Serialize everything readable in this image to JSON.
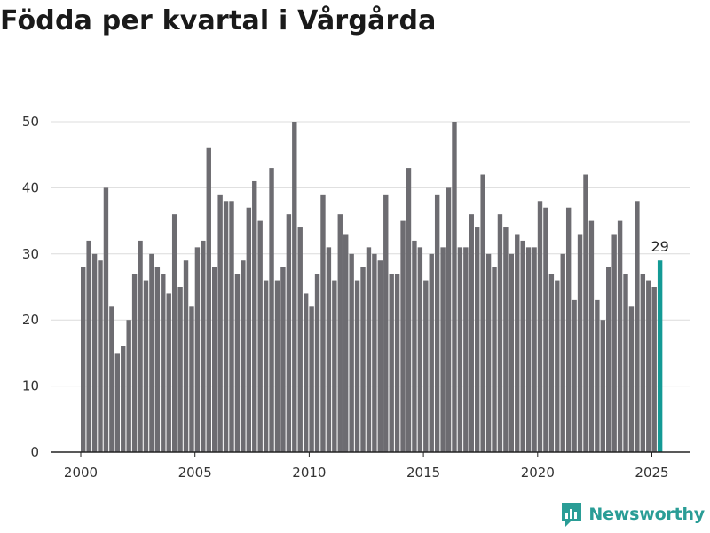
{
  "chart_data": {
    "type": "bar",
    "title": "Födda per kvartal i Vårgårda",
    "xlabel": "",
    "ylabel": "",
    "ylim": [
      0,
      50
    ],
    "yticks": [
      "0",
      "10",
      "20",
      "30",
      "40",
      "50"
    ],
    "xticks": [
      "2000",
      "2005",
      "2010",
      "2015",
      "2020",
      "2025"
    ],
    "x_start": "2000 Q1",
    "x_end": "2025 Q2",
    "grid": true,
    "legend": "none",
    "bar_color": "#6d6c71",
    "highlight_color": "#139a95",
    "highlight_label": "29",
    "categories": [
      "2000 Q1",
      "2000 Q2",
      "2000 Q3",
      "2000 Q4",
      "2001 Q1",
      "2001 Q2",
      "2001 Q3",
      "2001 Q4",
      "2002 Q1",
      "2002 Q2",
      "2002 Q3",
      "2002 Q4",
      "2003 Q1",
      "2003 Q2",
      "2003 Q3",
      "2003 Q4",
      "2004 Q1",
      "2004 Q2",
      "2004 Q3",
      "2004 Q4",
      "2005 Q1",
      "2005 Q2",
      "2005 Q3",
      "2005 Q4",
      "2006 Q1",
      "2006 Q2",
      "2006 Q3",
      "2006 Q4",
      "2007 Q1",
      "2007 Q2",
      "2007 Q3",
      "2007 Q4",
      "2008 Q1",
      "2008 Q2",
      "2008 Q3",
      "2008 Q4",
      "2009 Q1",
      "2009 Q2",
      "2009 Q3",
      "2009 Q4",
      "2010 Q1",
      "2010 Q2",
      "2010 Q3",
      "2010 Q4",
      "2011 Q1",
      "2011 Q2",
      "2011 Q3",
      "2011 Q4",
      "2012 Q1",
      "2012 Q2",
      "2012 Q3",
      "2012 Q4",
      "2013 Q1",
      "2013 Q2",
      "2013 Q3",
      "2013 Q4",
      "2014 Q1",
      "2014 Q2",
      "2014 Q3",
      "2014 Q4",
      "2015 Q1",
      "2015 Q2",
      "2015 Q3",
      "2015 Q4",
      "2016 Q1",
      "2016 Q2",
      "2016 Q3",
      "2016 Q4",
      "2017 Q1",
      "2017 Q2",
      "2017 Q3",
      "2017 Q4",
      "2018 Q1",
      "2018 Q2",
      "2018 Q3",
      "2018 Q4",
      "2019 Q1",
      "2019 Q2",
      "2019 Q3",
      "2019 Q4",
      "2020 Q1",
      "2020 Q2",
      "2020 Q3",
      "2020 Q4",
      "2021 Q1",
      "2021 Q2",
      "2021 Q3",
      "2021 Q4",
      "2022 Q1",
      "2022 Q2",
      "2022 Q3",
      "2022 Q4",
      "2023 Q1",
      "2023 Q2",
      "2023 Q3",
      "2023 Q4",
      "2024 Q1",
      "2024 Q2",
      "2024 Q3",
      "2024 Q4",
      "2025 Q1",
      "2025 Q2"
    ],
    "values": [
      28,
      32,
      30,
      29,
      40,
      22,
      15,
      16,
      20,
      27,
      32,
      26,
      30,
      28,
      27,
      24,
      36,
      25,
      29,
      22,
      31,
      32,
      46,
      28,
      39,
      38,
      38,
      27,
      29,
      37,
      41,
      35,
      26,
      43,
      26,
      28,
      36,
      50,
      34,
      24,
      22,
      27,
      39,
      31,
      26,
      36,
      33,
      30,
      26,
      28,
      31,
      30,
      29,
      39,
      27,
      27,
      35,
      43,
      32,
      31,
      26,
      30,
      39,
      31,
      40,
      50,
      31,
      31,
      36,
      34,
      42,
      30,
      28,
      36,
      34,
      30,
      33,
      32,
      31,
      31,
      38,
      37,
      27,
      26,
      30,
      37,
      23,
      33,
      42,
      35,
      23,
      20,
      28,
      33,
      35,
      27,
      22,
      38,
      27,
      26,
      25,
      29
    ]
  },
  "brand": {
    "name": "Newsworthy",
    "icon": "newsworthy-logo-icon",
    "color": "#2a9d96"
  }
}
